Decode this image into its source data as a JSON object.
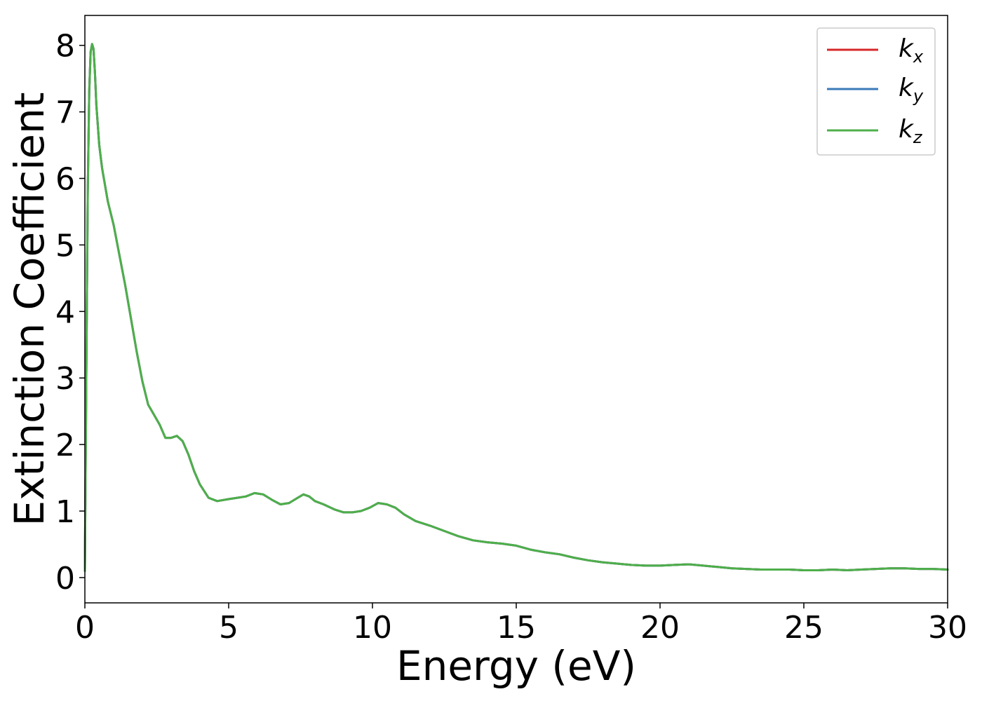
{
  "chart_data": {
    "type": "line",
    "xlabel": "Energy (eV)",
    "ylabel": "Extinction Coefficient",
    "xlim": [
      0,
      30
    ],
    "ylim": [
      -0.38,
      8.45
    ],
    "xticks": [
      0,
      5,
      10,
      15,
      20,
      25,
      30
    ],
    "yticks": [
      0,
      1,
      2,
      3,
      4,
      5,
      6,
      7,
      8
    ],
    "grid": false,
    "legend_position": "top-right",
    "legend": [
      {
        "base": "k",
        "sub": "x",
        "color": "#d62728"
      },
      {
        "base": "k",
        "sub": "y",
        "color": "#3a7ab8"
      },
      {
        "base": "k",
        "sub": "z",
        "color": "#4daf4a"
      }
    ],
    "series": [
      {
        "name": "kx",
        "color": "#d62728"
      },
      {
        "name": "ky",
        "color": "#3a7ab8"
      },
      {
        "name": "kz",
        "color": "#4daf4a"
      }
    ],
    "x": [
      0,
      0.05,
      0.1,
      0.15,
      0.2,
      0.25,
      0.3,
      0.35,
      0.4,
      0.5,
      0.6,
      0.7,
      0.8,
      1.0,
      1.2,
      1.4,
      1.6,
      1.8,
      2.0,
      2.2,
      2.4,
      2.6,
      2.8,
      3.0,
      3.2,
      3.4,
      3.6,
      3.8,
      4.0,
      4.3,
      4.6,
      5.0,
      5.3,
      5.6,
      5.9,
      6.2,
      6.5,
      6.8,
      7.1,
      7.4,
      7.6,
      7.8,
      8.0,
      8.3,
      8.7,
      9.0,
      9.3,
      9.6,
      9.9,
      10.2,
      10.5,
      10.8,
      11.1,
      11.5,
      12.0,
      12.5,
      13.0,
      13.5,
      14.0,
      14.5,
      15.0,
      15.5,
      16.0,
      16.5,
      17.0,
      17.5,
      18.0,
      18.5,
      19.0,
      19.5,
      20.0,
      20.5,
      21.0,
      21.5,
      22.0,
      22.5,
      23.0,
      23.5,
      24.0,
      24.5,
      25.0,
      25.5,
      26.0,
      26.5,
      27.0,
      27.5,
      28.0,
      28.5,
      29.0,
      29.5,
      30.0
    ],
    "values": [
      0.1,
      3.0,
      5.8,
      7.3,
      7.9,
      8.02,
      7.95,
      7.6,
      7.1,
      6.5,
      6.15,
      5.9,
      5.65,
      5.3,
      4.85,
      4.4,
      3.9,
      3.4,
      2.95,
      2.6,
      2.45,
      2.3,
      2.1,
      2.1,
      2.13,
      2.05,
      1.85,
      1.6,
      1.4,
      1.2,
      1.15,
      1.18,
      1.2,
      1.22,
      1.27,
      1.25,
      1.17,
      1.1,
      1.12,
      1.2,
      1.25,
      1.22,
      1.15,
      1.1,
      1.02,
      0.98,
      0.98,
      1.0,
      1.05,
      1.12,
      1.1,
      1.05,
      0.95,
      0.85,
      0.78,
      0.7,
      0.62,
      0.56,
      0.53,
      0.51,
      0.48,
      0.42,
      0.38,
      0.35,
      0.3,
      0.26,
      0.23,
      0.21,
      0.19,
      0.18,
      0.18,
      0.19,
      0.2,
      0.18,
      0.16,
      0.14,
      0.13,
      0.12,
      0.12,
      0.12,
      0.11,
      0.11,
      0.12,
      0.11,
      0.12,
      0.13,
      0.14,
      0.14,
      0.13,
      0.13,
      0.12
    ]
  }
}
